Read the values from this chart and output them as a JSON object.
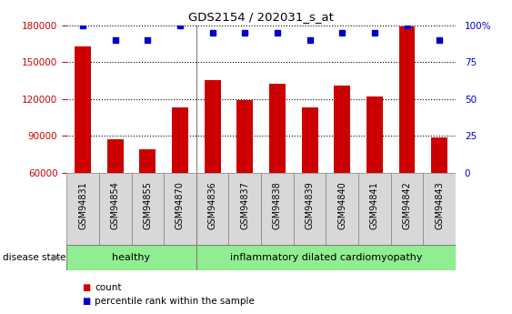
{
  "title": "GDS2154 / 202031_s_at",
  "samples": [
    "GSM94831",
    "GSM94854",
    "GSM94855",
    "GSM94870",
    "GSM94836",
    "GSM94837",
    "GSM94838",
    "GSM94839",
    "GSM94840",
    "GSM94841",
    "GSM94842",
    "GSM94843"
  ],
  "counts": [
    163000,
    87000,
    79000,
    113000,
    135000,
    119000,
    132000,
    113000,
    131000,
    122000,
    179000,
    89000
  ],
  "percentile_ranks": [
    100,
    90,
    90,
    100,
    95,
    95,
    95,
    90,
    95,
    95,
    100,
    90
  ],
  "bar_color": "#cc0000",
  "dot_color": "#0000cc",
  "ylim_left": [
    60000,
    180000
  ],
  "yticks_left": [
    60000,
    90000,
    120000,
    150000,
    180000
  ],
  "ytick_labels_left": [
    "60000",
    "90000",
    "120000",
    "150000",
    "180000"
  ],
  "ylim_right": [
    0,
    100
  ],
  "yticks_right": [
    0,
    25,
    50,
    75,
    100
  ],
  "ytick_labels_right": [
    "0",
    "25",
    "50",
    "75",
    "100%"
  ],
  "healthy_count": 4,
  "group1_label": "healthy",
  "group2_label": "inflammatory dilated cardiomyopathy",
  "group_color": "#90ee90",
  "disease_state_label": "disease state",
  "legend_count_label": "count",
  "legend_percentile_label": "percentile rank within the sample",
  "xtick_bg": "#d8d8d8",
  "bar_width": 0.5
}
